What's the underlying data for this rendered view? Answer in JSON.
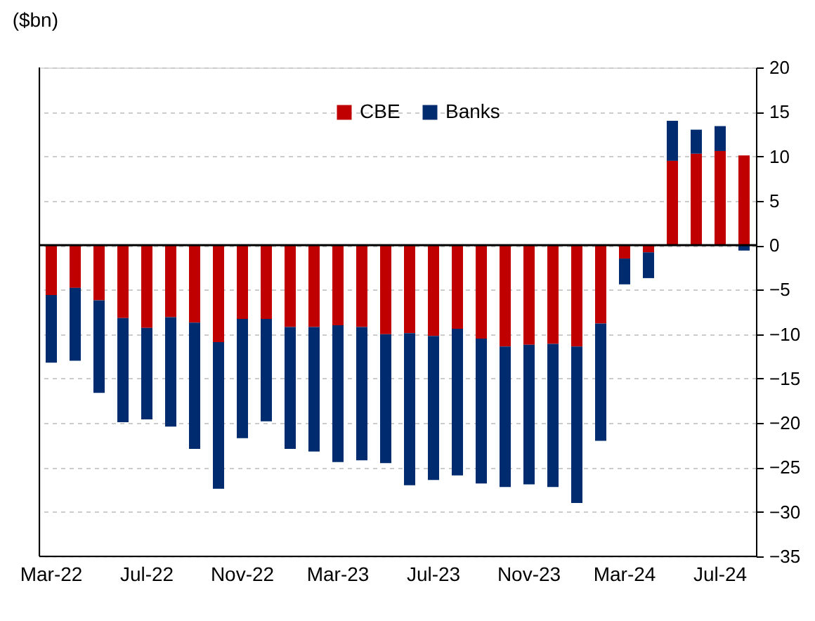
{
  "chart_data": {
    "type": "bar",
    "stacked": true,
    "ylabel": "($bn)",
    "categories": [
      "Mar-22",
      null,
      null,
      null,
      "Jul-22",
      null,
      null,
      null,
      "Nov-22",
      null,
      null,
      null,
      "Mar-23",
      null,
      null,
      null,
      "Jul-23",
      null,
      null,
      null,
      "Nov-23",
      null,
      null,
      null,
      "Mar-24",
      null,
      null,
      null,
      "Jul-24",
      null
    ],
    "series": [
      {
        "name": "CBE",
        "color": "#c00000",
        "values": [
          -5.6,
          -4.8,
          -6.2,
          -8.2,
          -9.3,
          -8.1,
          -8.7,
          -10.9,
          -8.3,
          -8.3,
          -9.2,
          -9.2,
          -9.0,
          -9.2,
          -10.0,
          -9.9,
          -10.2,
          -9.4,
          -10.5,
          -11.4,
          -11.2,
          -11.1,
          -11.4,
          -8.8,
          -1.5,
          -0.8,
          9.5,
          10.3,
          10.6,
          10.1
        ]
      },
      {
        "name": "Banks",
        "color": "#002b6f",
        "values": [
          -7.6,
          -8.2,
          -10.4,
          -11.7,
          -10.3,
          -12.3,
          -14.2,
          -16.5,
          -13.4,
          -11.5,
          -13.7,
          -14.0,
          -15.4,
          -15.0,
          -14.5,
          -17.1,
          -16.2,
          -16.5,
          -16.3,
          -15.8,
          -15.7,
          -16.1,
          -17.6,
          -13.2,
          -2.9,
          -2.9,
          4.5,
          2.7,
          2.8,
          -0.6
        ]
      }
    ],
    "ylim": [
      -35,
      20
    ],
    "yticks": [
      -35,
      -30,
      -25,
      -20,
      -15,
      -10,
      -5,
      0,
      5,
      10,
      15,
      20
    ],
    "ref_lines": [
      {
        "axis": "y",
        "value": 0,
        "color": "#000000"
      }
    ],
    "grid": "y",
    "legend": "top"
  }
}
